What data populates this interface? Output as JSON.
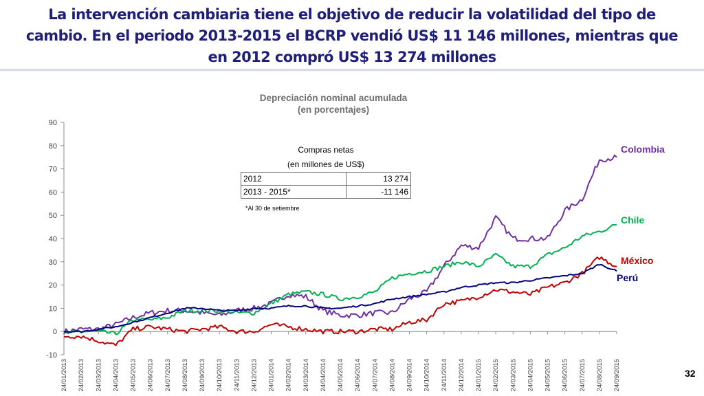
{
  "slide": {
    "title_lines": [
      "La intervención cambiaria tiene el objetivo de reducir la volatilidad del tipo de",
      "cambio. En el periodo 2013-2015 el BCRP vendió US$ 11 146 millones, mientras que",
      "en 2012 compró US$ 13 274 millones"
    ],
    "page_number": "32"
  },
  "inset_table": {
    "title": "Compras netas",
    "subtitle": "(en millones de US$)",
    "rows": [
      {
        "period": "2012",
        "value": "13 274"
      },
      {
        "period": "2013 - 2015*",
        "value": "-11 146"
      }
    ],
    "note": "*Al 30 de setiembre"
  },
  "chart_data": {
    "type": "line",
    "title": "Depreciación nominal acumulada",
    "subtitle": "(en porcentajes)",
    "ylim": [
      -10,
      90
    ],
    "yticks": [
      -10,
      0,
      10,
      20,
      30,
      40,
      50,
      60,
      70,
      80,
      90
    ],
    "x_tick_labels": [
      "24/01/2013",
      "24/02/2013",
      "24/03/2013",
      "24/04/2013",
      "24/05/2013",
      "24/06/2013",
      "24/07/2013",
      "24/08/2013",
      "24/09/2013",
      "24/10/2013",
      "24/11/2013",
      "24/12/2013",
      "24/01/2014",
      "24/02/2014",
      "24/03/2014",
      "24/04/2014",
      "24/05/2014",
      "24/06/2014",
      "24/07/2014",
      "24/08/2014",
      "24/09/2014",
      "24/10/2014",
      "24/11/2014",
      "24/12/2014",
      "24/01/2015",
      "24/02/2015",
      "24/03/2015",
      "24/04/2015",
      "24/05/2015",
      "24/06/2015",
      "24/07/2015",
      "24/08/2015",
      "24/09/2015"
    ],
    "series": [
      {
        "name": "Colombia",
        "color": "#7030a0",
        "values": [
          0,
          1,
          1,
          3,
          6,
          8,
          9,
          9,
          8,
          7,
          9,
          10,
          12,
          16,
          15,
          9,
          7,
          7,
          8,
          8,
          14,
          17,
          28,
          37,
          36,
          49,
          40,
          40,
          40,
          52,
          57,
          74,
          75
        ],
        "noise": 1.2
      },
      {
        "name": "Chile",
        "color": "#00b050",
        "values": [
          -1,
          0,
          0,
          -1,
          5,
          5,
          6,
          9,
          9,
          9,
          8,
          8,
          12,
          16,
          17,
          16,
          14,
          15,
          17,
          23,
          25,
          26,
          28,
          30,
          28,
          33,
          28,
          28,
          33,
          36,
          41,
          43,
          46
        ],
        "noise": 0.9
      },
      {
        "name": "México",
        "color": "#c00000",
        "values": [
          -2,
          -2,
          -4,
          -6,
          1,
          2,
          1,
          0,
          1,
          2,
          0,
          0,
          3,
          2,
          1,
          0,
          0,
          0,
          1,
          1,
          4,
          5,
          12,
          13,
          15,
          18,
          17,
          16,
          19,
          21,
          25,
          32,
          28
        ],
        "noise": 1.0
      },
      {
        "name": "Perú",
        "color": "#00007a",
        "values": [
          0,
          0,
          1,
          2,
          4,
          6,
          8,
          10,
          10,
          9,
          9,
          10,
          10,
          11,
          11,
          10,
          10,
          11,
          12,
          14,
          15,
          16,
          17,
          19,
          20,
          21,
          21,
          22,
          23,
          24,
          25,
          29,
          26
        ],
        "noise": 0.35
      }
    ],
    "grid": false,
    "legend": "direct labels at right"
  }
}
